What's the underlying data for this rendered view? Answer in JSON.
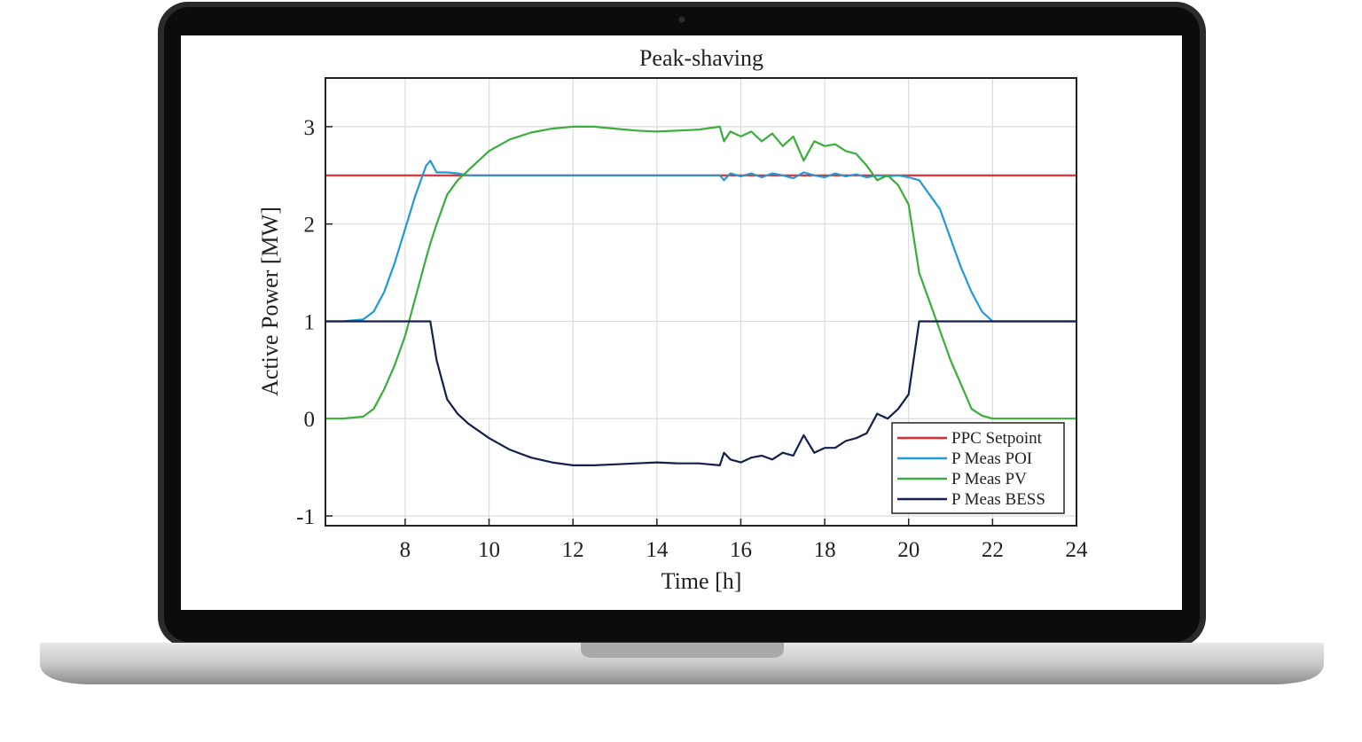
{
  "chart_data": {
    "type": "line",
    "title": "Peak-shaving",
    "x_label": "Time [h]",
    "y_label": "Active Power [MW]",
    "xlim": [
      6.1,
      24
    ],
    "ylim": [
      -1.1,
      3.5
    ],
    "xticks": [
      8,
      10,
      12,
      14,
      16,
      18,
      20,
      22,
      24
    ],
    "yticks": [
      -1,
      0,
      1,
      2,
      3
    ],
    "grid": true,
    "legend": "lower right",
    "x": [
      6.1,
      6.5,
      7,
      7.25,
      7.5,
      7.75,
      8,
      8.25,
      8.5,
      8.6,
      8.75,
      9,
      9.25,
      9.5,
      10,
      10.5,
      11,
      11.5,
      12,
      12.5,
      13,
      13.5,
      14,
      14.5,
      15,
      15.5,
      15.6,
      15.75,
      16,
      16.25,
      16.5,
      16.75,
      17,
      17.25,
      17.5,
      17.75,
      18,
      18.25,
      18.5,
      18.75,
      19,
      19.25,
      19.5,
      19.75,
      20,
      20.25,
      20.5,
      20.75,
      21,
      21.25,
      21.5,
      21.75,
      22,
      22.5,
      23,
      24
    ],
    "series": [
      {
        "name": "PPC Setpoint",
        "color": "#e8262b",
        "values": [
          2.5,
          2.5,
          2.5,
          2.5,
          2.5,
          2.5,
          2.5,
          2.5,
          2.5,
          2.5,
          2.5,
          2.5,
          2.5,
          2.5,
          2.5,
          2.5,
          2.5,
          2.5,
          2.5,
          2.5,
          2.5,
          2.5,
          2.5,
          2.5,
          2.5,
          2.5,
          2.5,
          2.5,
          2.5,
          2.5,
          2.5,
          2.5,
          2.5,
          2.5,
          2.5,
          2.5,
          2.5,
          2.5,
          2.5,
          2.5,
          2.5,
          2.5,
          2.5,
          2.5,
          2.5,
          2.5,
          2.5,
          2.5,
          2.5,
          2.5,
          2.5,
          2.5,
          2.5,
          2.5,
          2.5,
          2.5
        ]
      },
      {
        "name": "P Meas POI",
        "color": "#1f9ad6",
        "values": [
          1,
          1,
          1.02,
          1.1,
          1.3,
          1.6,
          1.95,
          2.3,
          2.6,
          2.65,
          2.53,
          2.53,
          2.52,
          2.5,
          2.5,
          2.5,
          2.5,
          2.5,
          2.5,
          2.5,
          2.5,
          2.5,
          2.5,
          2.5,
          2.5,
          2.5,
          2.45,
          2.52,
          2.49,
          2.52,
          2.48,
          2.52,
          2.5,
          2.47,
          2.53,
          2.5,
          2.48,
          2.52,
          2.49,
          2.51,
          2.48,
          2.5,
          2.49,
          2.5,
          2.48,
          2.45,
          2.3,
          2.15,
          1.85,
          1.55,
          1.3,
          1.1,
          1,
          1,
          1,
          1
        ]
      },
      {
        "name": "P Meas PV",
        "color": "#3aae3a",
        "values": [
          0,
          0,
          0.02,
          0.1,
          0.3,
          0.55,
          0.85,
          1.25,
          1.65,
          1.8,
          2,
          2.3,
          2.45,
          2.55,
          2.75,
          2.87,
          2.94,
          2.98,
          3,
          3,
          2.98,
          2.96,
          2.95,
          2.96,
          2.97,
          3,
          2.85,
          2.95,
          2.9,
          2.95,
          2.85,
          2.93,
          2.8,
          2.9,
          2.65,
          2.85,
          2.8,
          2.82,
          2.75,
          2.72,
          2.6,
          2.45,
          2.5,
          2.4,
          2.2,
          1.5,
          1.2,
          0.9,
          0.6,
          0.35,
          0.1,
          0.03,
          0,
          0,
          0,
          0
        ]
      },
      {
        "name": "P Meas BESS",
        "color": "#13204d",
        "values": [
          1,
          1,
          1,
          1,
          1,
          1,
          1,
          1,
          1,
          1,
          0.6,
          0.2,
          0.05,
          -0.05,
          -0.2,
          -0.32,
          -0.4,
          -0.45,
          -0.48,
          -0.48,
          -0.47,
          -0.46,
          -0.45,
          -0.46,
          -0.46,
          -0.48,
          -0.35,
          -0.42,
          -0.45,
          -0.4,
          -0.38,
          -0.42,
          -0.35,
          -0.38,
          -0.17,
          -0.35,
          -0.3,
          -0.3,
          -0.23,
          -0.2,
          -0.15,
          0.05,
          0,
          0.1,
          0.25,
          1,
          1,
          1,
          1,
          1,
          1,
          1,
          1,
          1,
          1,
          1
        ]
      }
    ]
  }
}
